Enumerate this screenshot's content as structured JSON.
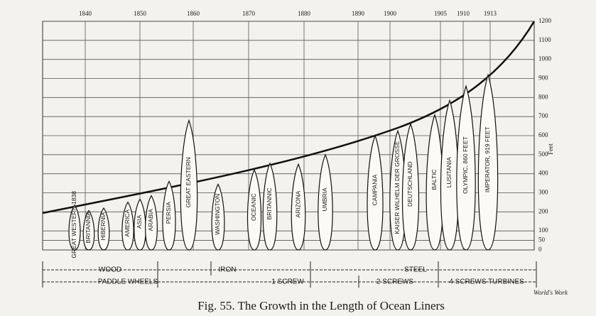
{
  "chart_data": {
    "type": "bar",
    "title": "Fig. 55.   The Growth in the Length of Ocean Liners",
    "source": "World's Work",
    "y_label": "Feet",
    "year_labels": [
      1840,
      1850,
      1860,
      1870,
      1880,
      1890,
      1900,
      1905,
      1910,
      1913
    ],
    "categories": [
      "GREAT WESTERN 1838",
      "BRITANNIA",
      "HIBERNIA",
      "AMERICA",
      "ASIA",
      "ARABIA",
      "PERSIA",
      "GREAT EASTERN",
      "WASHINGTON",
      "OCEANIC",
      "BRITANNIC",
      "ARIZONA",
      "UMBRIA",
      "CAMPANIA",
      "KAISER WILHELM DER GROSSE",
      "DEUTSCHLAND",
      "BALTIC",
      "LUSITANIA",
      "OLYMPIC, 860 FEET",
      "IMPERATOR, 919 FEET"
    ],
    "values": [
      236,
      207,
      220,
      251,
      266,
      285,
      360,
      680,
      345,
      420,
      455,
      450,
      500,
      600,
      625,
      662,
      709,
      785,
      860,
      919
    ],
    "color": "#fbfaf6",
    "ylim": [
      0,
      1200
    ],
    "yticks": [
      0,
      50,
      100,
      200,
      300,
      400,
      500,
      600,
      700,
      800,
      900,
      1000,
      1100,
      1200
    ],
    "grid": true,
    "hull": [
      "WOOD",
      "IRON",
      "STEEL"
    ],
    "propulsion": [
      "PADDLE WHEELS",
      "1 SCREW",
      "2 SCREWS",
      "4 SCREWS TURBINES"
    ]
  }
}
